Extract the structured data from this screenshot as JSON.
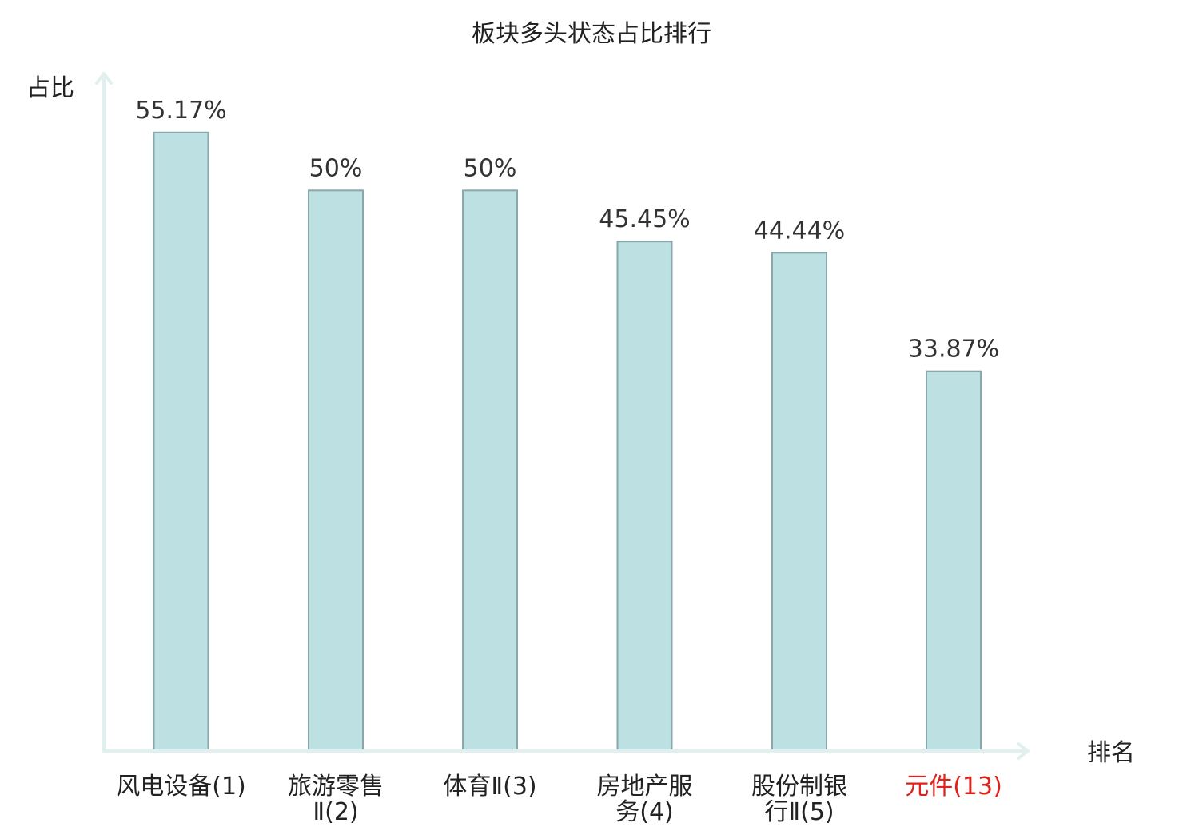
{
  "chart_data": {
    "type": "bar",
    "title": "板块多头状态占比排行",
    "ylabel": "占比",
    "xlabel": "排名",
    "ylim": [
      0,
      60
    ],
    "grid": false,
    "legend": "none",
    "categories": [
      [
        "风电设备(1)"
      ],
      [
        "旅游零售",
        "Ⅱ(2)"
      ],
      [
        "体育Ⅱ(3)"
      ],
      [
        "房地产服",
        "务(4)"
      ],
      [
        "股份制银",
        "行Ⅱ(5)"
      ],
      [
        "元件(13)"
      ]
    ],
    "values": [
      55.17,
      50,
      50,
      45.45,
      44.44,
      33.87
    ],
    "value_labels": [
      "55.17%",
      "50%",
      "50%",
      "45.45%",
      "44.44%",
      "33.87%"
    ],
    "highlight_index": 5,
    "colors": {
      "bar_fill": "#bde0e3",
      "bar_stroke": "#8aa8ab",
      "axis": "#dff0ee",
      "highlight_text": "#e0201b"
    }
  }
}
